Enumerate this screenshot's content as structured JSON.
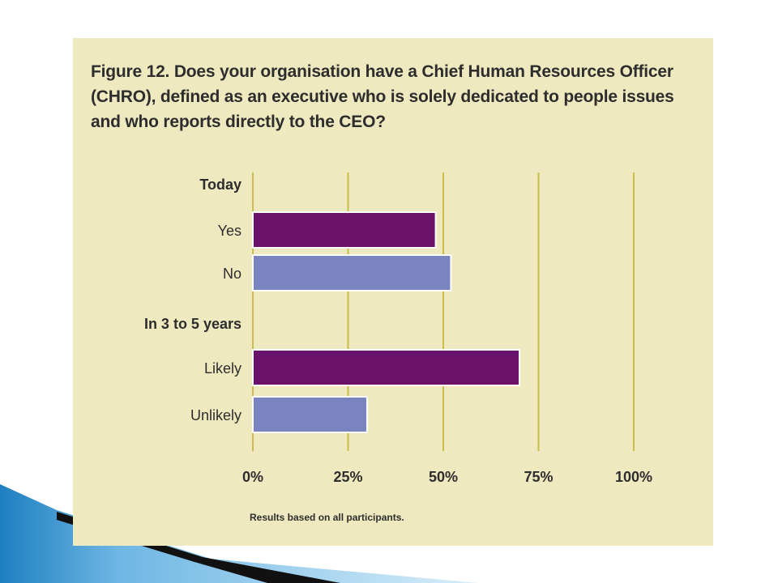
{
  "figure": {
    "title": "Figure 12. Does your organisation have a Chief Human Resources Officer (CHRO), defined as an executive who is solely dedicated to people issues and who reports directly to the CEO?",
    "footnote": "Results based on all participants."
  },
  "colors": {
    "panel_background": "#efe9c0",
    "gridline": "#c9bc4a",
    "bar_primary": "#6a1169",
    "bar_secondary": "#7a84c0",
    "text": "#2d2d2d",
    "decor_light": "#8fc8ea",
    "decor_dark": "#111111"
  },
  "chart_data": {
    "type": "bar",
    "orientation": "horizontal",
    "groups": [
      {
        "label": "Today",
        "bars": [
          {
            "label": "Yes",
            "value": 48,
            "color": "#6a1169"
          },
          {
            "label": "No",
            "value": 52,
            "color": "#7a84c0"
          }
        ]
      },
      {
        "label": "In 3 to 5 years",
        "bars": [
          {
            "label": "Likely",
            "value": 70,
            "color": "#6a1169"
          },
          {
            "label": "Unlikely",
            "value": 30,
            "color": "#7a84c0"
          }
        ]
      }
    ],
    "xlim": [
      0,
      100
    ],
    "xticks": [
      "0%",
      "25%",
      "50%",
      "75%",
      "100%"
    ],
    "xtick_values": [
      0,
      25,
      50,
      75,
      100
    ],
    "grid": true
  }
}
